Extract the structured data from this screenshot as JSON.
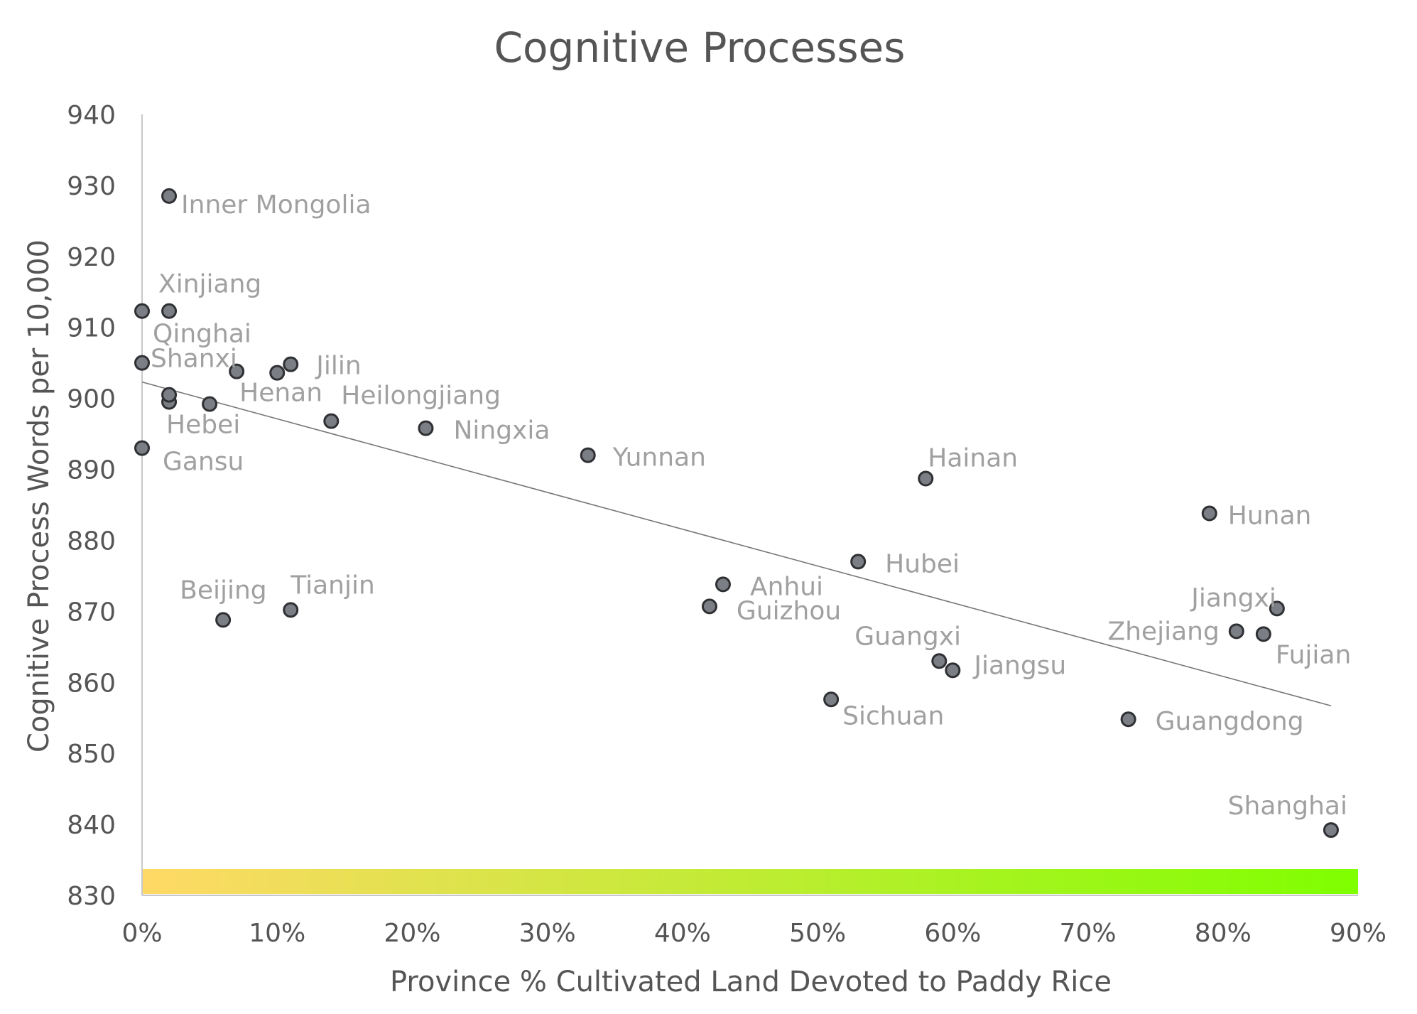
{
  "chart_data": {
    "type": "scatter",
    "title": "Cognitive Processes",
    "xlabel": "Province % Cultivated Land Devoted to Paddy Rice",
    "ylabel": "Cognitive Process Words per 10,000",
    "xlim": [
      0,
      90
    ],
    "ylim": [
      830,
      940
    ],
    "x_ticks": [
      "0%",
      "10%",
      "20%",
      "30%",
      "40%",
      "50%",
      "60%",
      "70%",
      "80%",
      "90%"
    ],
    "y_ticks": [
      "830",
      "840",
      "850",
      "860",
      "870",
      "880",
      "890",
      "900",
      "910",
      "920",
      "930",
      "940"
    ],
    "grid": false,
    "legend": "none",
    "trendline": {
      "x": [
        0,
        88
      ],
      "y": [
        902.3,
        856.7
      ]
    },
    "color_band": {
      "from": "#ffd966",
      "to": "#7fff00"
    },
    "point_color": "#7b7e85",
    "points": [
      {
        "label": "Inner Mongolia",
        "x": 2,
        "y": 928.5
      },
      {
        "label": "Xinjiang",
        "x": 2,
        "y": 912.3
      },
      {
        "label": "Qinghai",
        "x": 0,
        "y": 912.3
      },
      {
        "label": "Shanxi",
        "x": 0,
        "y": 905
      },
      {
        "label": "Henan",
        "x": 7,
        "y": 903.8
      },
      {
        "label": "Jilin",
        "x": 11,
        "y": 904.8
      },
      {
        "label": "",
        "x": 10,
        "y": 903.6
      },
      {
        "label": "Heilongjiang",
        "x": 14,
        "y": 896.8
      },
      {
        "label": "Hebei",
        "x": 2,
        "y": 899.5
      },
      {
        "label": "",
        "x": 2,
        "y": 900.5
      },
      {
        "label": "",
        "x": 5,
        "y": 899.2
      },
      {
        "label": "Gansu",
        "x": 0,
        "y": 893
      },
      {
        "label": "Ningxia",
        "x": 21,
        "y": 895.8
      },
      {
        "label": "Yunnan",
        "x": 33,
        "y": 892
      },
      {
        "label": "Hainan",
        "x": 58,
        "y": 888.7
      },
      {
        "label": "Hunan",
        "x": 79,
        "y": 883.8
      },
      {
        "label": "Hubei",
        "x": 53,
        "y": 877
      },
      {
        "label": "Anhui",
        "x": 43,
        "y": 873.8
      },
      {
        "label": "Guizhou",
        "x": 42,
        "y": 870.7
      },
      {
        "label": "Beijing",
        "x": 6,
        "y": 868.8
      },
      {
        "label": "Tianjin",
        "x": 11,
        "y": 870.2
      },
      {
        "label": "Jiangxi",
        "x": 84,
        "y": 870.4
      },
      {
        "label": "Zhejiang",
        "x": 81,
        "y": 867.2
      },
      {
        "label": "Fujian",
        "x": 83,
        "y": 866.8
      },
      {
        "label": "Guangxi",
        "x": 59,
        "y": 863
      },
      {
        "label": "Jiangsu",
        "x": 60,
        "y": 861.7
      },
      {
        "label": "Sichuan",
        "x": 51,
        "y": 857.6
      },
      {
        "label": "Guangdong",
        "x": 73,
        "y": 854.8
      },
      {
        "label": "Shanghai",
        "x": 88,
        "y": 839.2
      }
    ]
  }
}
